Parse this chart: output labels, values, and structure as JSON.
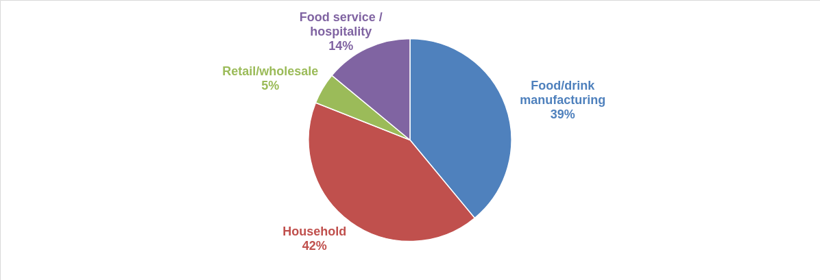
{
  "chart_data": {
    "type": "pie",
    "categories": [
      "Food/drink\nmanufacturing",
      "Household",
      "Retail/wholesale",
      "Food service /\nhospitality"
    ],
    "values": [
      39,
      42,
      5,
      14
    ],
    "value_labels": [
      "39%",
      "42%",
      "5%",
      "14%"
    ],
    "colors": [
      "#4f81bd",
      "#c0504d",
      "#9bbb59",
      "#8064a2"
    ]
  }
}
